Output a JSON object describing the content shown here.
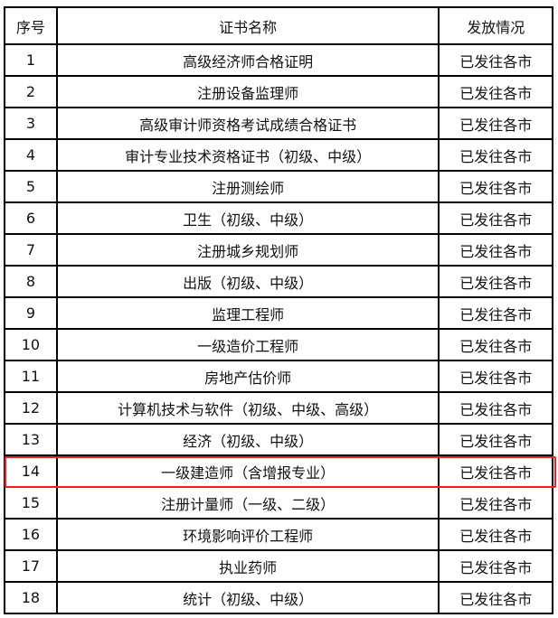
{
  "table": {
    "headers": [
      "序号",
      "证书名称",
      "发放情况"
    ],
    "rows": [
      [
        "1",
        "高级经济师合格证明",
        "已发往各市"
      ],
      [
        "2",
        "注册设备监理师",
        "已发往各市"
      ],
      [
        "3",
        "高级审计师资格考试成绩合格证书",
        "已发往各市"
      ],
      [
        "4",
        "审计专业技术资格证书（初级、中级）",
        "已发往各市"
      ],
      [
        "5",
        "注册测绘师",
        "已发往各市"
      ],
      [
        "6",
        "卫生（初级、中级）",
        "已发往各市"
      ],
      [
        "7",
        "注册城乡规划师",
        "已发往各市"
      ],
      [
        "8",
        "出版（初级、中级）",
        "已发往各市"
      ],
      [
        "9",
        "监理工程师",
        "已发往各市"
      ],
      [
        "10",
        "一级造价工程师",
        "已发往各市"
      ],
      [
        "11",
        "房地产估价师",
        "已发往各市"
      ],
      [
        "12",
        "计算机技术与软件（初级、中级、高级）",
        "已发往各市"
      ],
      [
        "13",
        "经济（初级、中级）",
        "已发往各市"
      ],
      [
        "14",
        "一级建造师（含增报专业）",
        "已发往各市"
      ],
      [
        "15",
        "注册计量师（一级、二级）",
        "已发往各市"
      ],
      [
        "16",
        "环境影响评价工程师",
        "已发往各市"
      ],
      [
        "17",
        "执业药师",
        "已发往各市"
      ],
      [
        "18",
        "统计（初级、中级）",
        "已发往各市"
      ]
    ],
    "highlighted_row": "14",
    "highlight_color": "#f02020"
  }
}
